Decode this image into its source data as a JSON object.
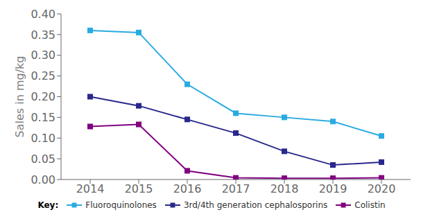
{
  "chart_data": {
    "type": "line",
    "x": [
      2014,
      2015,
      2016,
      2017,
      2018,
      2019,
      2020
    ],
    "series": [
      {
        "name": "Fluoroquinolones",
        "color": "#29ABE2",
        "marker": "square",
        "values": [
          0.36,
          0.355,
          0.23,
          0.16,
          0.15,
          0.14,
          0.105
        ]
      },
      {
        "name": "3rd/4th generation cephalosporins",
        "color": "#29288C",
        "marker": "square",
        "values": [
          0.2,
          0.178,
          0.145,
          0.112,
          0.068,
          0.035,
          0.042
        ]
      },
      {
        "name": "Colistin",
        "color": "#800080",
        "marker": "square",
        "values": [
          0.128,
          0.133,
          0.021,
          0.004,
          0.003,
          0.003,
          0.004
        ]
      }
    ],
    "ylabel": "Sales in mg/kg",
    "xlim": [
      2013.4,
      2020.6
    ],
    "xticks": [
      2014,
      2015,
      2016,
      2017,
      2018,
      2019,
      2020
    ],
    "ylim": [
      0.0,
      0.4
    ],
    "yticks": [
      {
        "value": 0.0,
        "label": "0.00"
      },
      {
        "value": 0.05,
        "label": "0.05"
      },
      {
        "value": 0.1,
        "label": "0.10"
      },
      {
        "value": 0.15,
        "label": "0.15"
      },
      {
        "value": 0.2,
        "label": "0.20"
      },
      {
        "value": 0.25,
        "label": "0.25"
      },
      {
        "value": 0.3,
        "label": "0.30"
      },
      {
        "value": 0.35,
        "label": "0.35"
      },
      {
        "value": 0.4,
        "label": "0.40"
      }
    ],
    "grid": false,
    "legend": "bottom",
    "annotations": [
      "Key:"
    ]
  }
}
